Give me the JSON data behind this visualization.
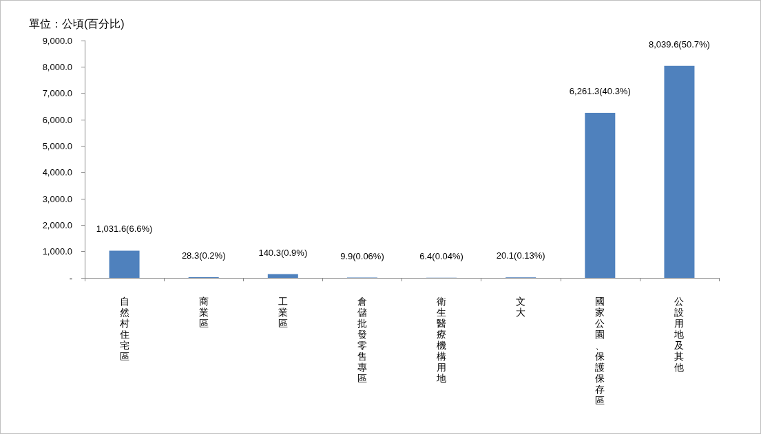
{
  "chart_data": {
    "type": "bar",
    "ylabel": "單位：公頃(百分比)",
    "categories": [
      "自然村住宅區",
      "商業區",
      "工業區",
      "倉儲批發零售專區",
      "衛生醫療機構用地",
      "文大",
      "國家公園、保護保存區",
      "公設用地及其他"
    ],
    "values": [
      1031.6,
      28.3,
      140.3,
      9.9,
      6.4,
      20.1,
      6261.3,
      8039.6
    ],
    "value_labels": [
      "1,031.6(6.6%)",
      "28.3(0.2%)",
      "140.3(0.9%)",
      "9.9(0.06%)",
      "6.4(0.04%)",
      "20.1(0.13%)",
      "6,261.3(40.3%)",
      "8,039.6(50.7%)"
    ],
    "color": "#4f81bd",
    "ylim": [
      0,
      9000
    ],
    "yticks": [
      {
        "value": 0,
        "label": "-"
      },
      {
        "value": 1000,
        "label": "1,000.0"
      },
      {
        "value": 2000,
        "label": "2,000.0"
      },
      {
        "value": 3000,
        "label": "3,000.0"
      },
      {
        "value": 4000,
        "label": "4,000.0"
      },
      {
        "value": 5000,
        "label": "5,000.0"
      },
      {
        "value": 6000,
        "label": "6,000.0"
      },
      {
        "value": 7000,
        "label": "7,000.0"
      },
      {
        "value": 8000,
        "label": "8,000.0"
      },
      {
        "value": 9000,
        "label": "9,000.0"
      }
    ],
    "grid": false
  }
}
